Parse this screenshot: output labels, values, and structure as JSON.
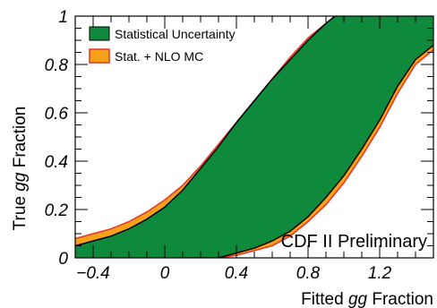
{
  "chart_data": {
    "type": "area",
    "title": "",
    "xlabel": {
      "prefix": "Fitted ",
      "emph": "gg",
      "suffix": " Fraction"
    },
    "ylabel": {
      "prefix": "True ",
      "emph": "gg",
      "suffix": " Fraction"
    },
    "xlim": [
      -0.5,
      1.5
    ],
    "ylim": [
      0,
      1
    ],
    "x_ticks": [
      -0.4,
      0,
      0.4,
      0.8,
      1.2
    ],
    "x_tick_labels": [
      "−0.4",
      "0",
      "0.4",
      "0.8",
      "1.2"
    ],
    "y_ticks": [
      0,
      0.2,
      0.4,
      0.6,
      0.8,
      1
    ],
    "y_tick_labels": [
      "0",
      "0.2",
      "0.4",
      "0.6",
      "0.8",
      "1"
    ],
    "grid": false,
    "legend_position": "top-left",
    "annotation": "CDF II Preliminary",
    "series": [
      {
        "name": "Stat. + NLO MC",
        "color": "#f7a11a",
        "edge_color": "#e8322a",
        "upper": [
          [
            -0.5,
            0.08
          ],
          [
            -0.4,
            0.1
          ],
          [
            -0.3,
            0.12
          ],
          [
            -0.2,
            0.15
          ],
          [
            -0.1,
            0.19
          ],
          [
            0.0,
            0.24
          ],
          [
            0.1,
            0.3
          ],
          [
            0.2,
            0.38
          ],
          [
            0.3,
            0.47
          ],
          [
            0.4,
            0.56
          ],
          [
            0.5,
            0.65
          ],
          [
            0.6,
            0.74
          ],
          [
            0.7,
            0.83
          ],
          [
            0.8,
            0.91
          ],
          [
            0.9,
            0.97
          ],
          [
            0.96,
            1.0
          ]
        ],
        "lower": [
          [
            0.13,
            0.0
          ],
          [
            0.3,
            0.0
          ],
          [
            0.4,
            0.01
          ],
          [
            0.5,
            0.03
          ],
          [
            0.6,
            0.05
          ],
          [
            0.7,
            0.09
          ],
          [
            0.8,
            0.15
          ],
          [
            0.9,
            0.22
          ],
          [
            1.0,
            0.31
          ],
          [
            1.1,
            0.42
          ],
          [
            1.2,
            0.54
          ],
          [
            1.3,
            0.68
          ],
          [
            1.4,
            0.8
          ],
          [
            1.5,
            0.86
          ]
        ]
      },
      {
        "name": "Statistical Uncertainty",
        "color": "#0f8a3c",
        "edge_color": "#000000",
        "upper": [
          [
            -0.5,
            0.05
          ],
          [
            -0.4,
            0.07
          ],
          [
            -0.3,
            0.09
          ],
          [
            -0.2,
            0.12
          ],
          [
            -0.1,
            0.16
          ],
          [
            0.0,
            0.21
          ],
          [
            0.1,
            0.28
          ],
          [
            0.2,
            0.37
          ],
          [
            0.3,
            0.46
          ],
          [
            0.4,
            0.56
          ],
          [
            0.5,
            0.65
          ],
          [
            0.6,
            0.74
          ],
          [
            0.7,
            0.82
          ],
          [
            0.8,
            0.9
          ],
          [
            0.9,
            0.97
          ],
          [
            0.95,
            1.0
          ]
        ],
        "lower": [
          [
            0.13,
            0.0
          ],
          [
            0.3,
            0.0
          ],
          [
            0.4,
            0.02
          ],
          [
            0.5,
            0.04
          ],
          [
            0.6,
            0.07
          ],
          [
            0.7,
            0.11
          ],
          [
            0.8,
            0.17
          ],
          [
            0.9,
            0.25
          ],
          [
            1.0,
            0.34
          ],
          [
            1.1,
            0.45
          ],
          [
            1.2,
            0.57
          ],
          [
            1.3,
            0.71
          ],
          [
            1.4,
            0.82
          ],
          [
            1.5,
            0.88
          ]
        ]
      }
    ]
  }
}
